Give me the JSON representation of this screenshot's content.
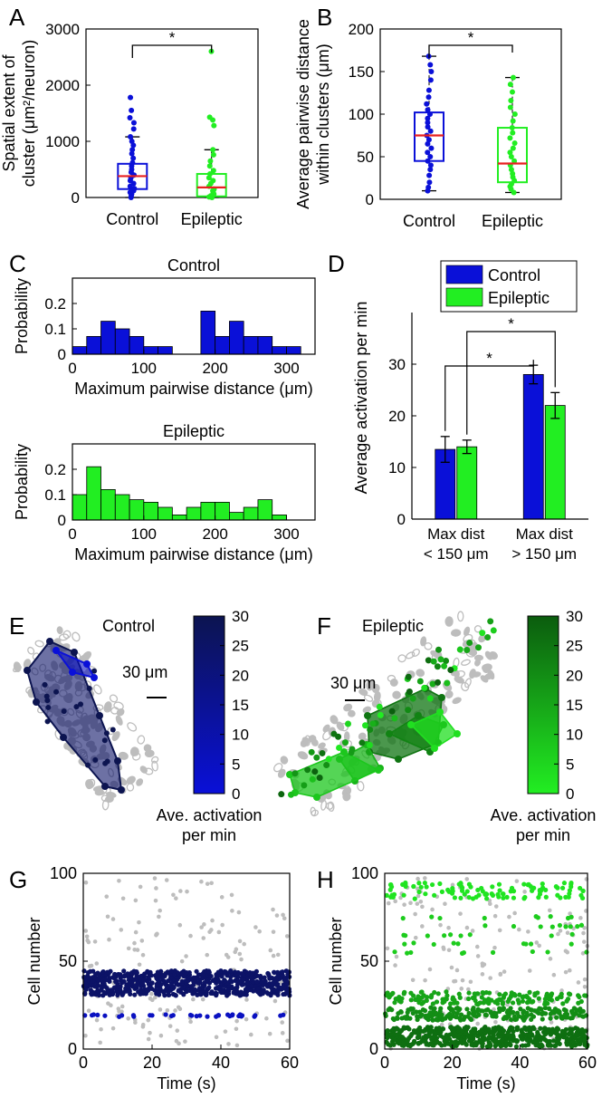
{
  "panel_letters": {
    "A": "A",
    "B": "B",
    "C": "C",
    "D": "D",
    "E": "E",
    "F": "F",
    "G": "G",
    "H": "H"
  },
  "colors": {
    "control": "#0a10d8",
    "epileptic": "#22ee22",
    "median": "#e82020",
    "gray": "#bdbdbd",
    "control_dark": "#0c1450",
    "epileptic_dark": "#0b5c0e"
  },
  "chart_data": [
    {
      "panel": "A",
      "type": "box",
      "ylabel_lines": [
        "Spatial extent of",
        "cluster (μm²/neuron)"
      ],
      "categories": [
        "Control",
        "Epileptic"
      ],
      "ylim": [
        0,
        3000
      ],
      "yticks": [
        0,
        1000,
        2000,
        3000
      ],
      "significance": "*",
      "boxes": [
        {
          "name": "Control",
          "q1": 150,
          "median": 380,
          "q3": 600,
          "whisker_low": 0,
          "whisker_high": 1080,
          "points": [
            0,
            30,
            60,
            90,
            120,
            160,
            200,
            250,
            300,
            350,
            400,
            450,
            500,
            560,
            620,
            700,
            780,
            850,
            930,
            1000,
            1080,
            1220,
            1330,
            1420,
            1550,
            1780
          ]
        },
        {
          "name": "Epileptic",
          "q1": 20,
          "median": 180,
          "q3": 420,
          "whisker_low": 0,
          "whisker_high": 850,
          "points": [
            0,
            10,
            30,
            60,
            90,
            120,
            150,
            200,
            250,
            300,
            350,
            420,
            480,
            560,
            650,
            760,
            850,
            1280,
            1380,
            1430,
            2600
          ]
        }
      ]
    },
    {
      "panel": "B",
      "type": "box",
      "ylabel_lines": [
        "Average pairwise distance",
        "within clusters (μm)"
      ],
      "categories": [
        "Control",
        "Epileptic"
      ],
      "ylim": [
        0,
        200
      ],
      "yticks": [
        0,
        50,
        100,
        150,
        200
      ],
      "significance": "*",
      "boxes": [
        {
          "name": "Control",
          "q1": 45,
          "median": 75,
          "q3": 102,
          "whisker_low": 10,
          "whisker_high": 168,
          "points": [
            10,
            14,
            20,
            28,
            35,
            40,
            45,
            50,
            55,
            60,
            65,
            70,
            75,
            80,
            85,
            90,
            95,
            100,
            105,
            112,
            120,
            128,
            140,
            150,
            158,
            168
          ]
        },
        {
          "name": "Epileptic",
          "q1": 20,
          "median": 42,
          "q3": 84,
          "whisker_low": 8,
          "whisker_high": 143,
          "points": [
            8,
            12,
            15,
            18,
            22,
            26,
            30,
            35,
            40,
            45,
            50,
            55,
            60,
            66,
            72,
            78,
            84,
            92,
            100,
            108,
            116,
            126,
            135,
            143
          ]
        }
      ]
    },
    {
      "panel": "C-control",
      "type": "bar",
      "title": "Control",
      "xlabel": "Maximum pairwise distance (μm)",
      "ylabel": "Probability",
      "xlim": [
        0,
        340
      ],
      "ylim": [
        0,
        0.3
      ],
      "xticks": [
        0,
        100,
        200,
        300
      ],
      "yticks": [
        0,
        0.1,
        0.2
      ],
      "ytick_labels": [
        "0",
        "0.1",
        "0.2"
      ],
      "bin_width": 20,
      "x": [
        10,
        30,
        50,
        70,
        90,
        110,
        130,
        150,
        170,
        190,
        210,
        230,
        250,
        270,
        290,
        310
      ],
      "values": [
        0.03,
        0.07,
        0.13,
        0.1,
        0.07,
        0.03,
        0.03,
        0,
        0,
        0.17,
        0.07,
        0.13,
        0.07,
        0.07,
        0.03,
        0.03
      ]
    },
    {
      "panel": "C-epileptic",
      "type": "bar",
      "title": "Epileptic",
      "xlabel": "Maximum pairwise distance (μm)",
      "ylabel": "Probability",
      "xlim": [
        0,
        340
      ],
      "ylim": [
        0,
        0.3
      ],
      "xticks": [
        0,
        100,
        200,
        300
      ],
      "yticks": [
        0,
        0.1,
        0.2
      ],
      "ytick_labels": [
        "0",
        "0.1",
        "0.2"
      ],
      "bin_width": 20,
      "x": [
        10,
        30,
        50,
        70,
        90,
        110,
        130,
        150,
        170,
        190,
        210,
        230,
        250,
        270,
        290,
        310
      ],
      "values": [
        0.1,
        0.21,
        0.12,
        0.1,
        0.08,
        0.07,
        0.05,
        0.02,
        0.05,
        0.07,
        0.07,
        0.03,
        0.05,
        0.08,
        0.02,
        0
      ]
    },
    {
      "panel": "D",
      "type": "bar",
      "ylabel": "Average activation per min",
      "categories": [
        [
          "Max dist",
          "< 150 μm"
        ],
        [
          "Max dist",
          "> 150 μm"
        ]
      ],
      "ylim": [
        0,
        40
      ],
      "yticks": [
        0,
        10,
        20,
        30
      ],
      "legend": "top-center",
      "significance": [
        "*",
        "*"
      ],
      "series": [
        {
          "name": "Control",
          "values": [
            13.5,
            28
          ],
          "errors": [
            2.5,
            1.8
          ]
        },
        {
          "name": "Epileptic",
          "values": [
            14,
            22
          ],
          "errors": [
            1.3,
            2.5
          ]
        }
      ]
    },
    {
      "panel": "E",
      "type": "map",
      "title": "Control",
      "scale_bar": "30 μm",
      "colorbar_label_lines": [
        "Ave. activation",
        "per min"
      ],
      "colorbar_range": [
        0,
        30
      ],
      "colorbar_ticks": [
        0,
        5,
        10,
        15,
        20,
        25,
        30
      ],
      "clusters": [
        {
          "activation": 25
        },
        {
          "activation": 5
        }
      ]
    },
    {
      "panel": "F",
      "type": "map",
      "title": "Epileptic",
      "scale_bar": "30 μm",
      "colorbar_label_lines": [
        "Ave. activation",
        "per min"
      ],
      "colorbar_range": [
        0,
        30
      ],
      "colorbar_ticks": [
        0,
        5,
        10,
        15,
        20,
        25,
        30
      ],
      "clusters": [
        {
          "activation": 25
        },
        {
          "activation": 22
        },
        {
          "activation": 12
        },
        {
          "activation": 8
        },
        {
          "activation": 3
        }
      ]
    },
    {
      "panel": "G",
      "type": "scatter",
      "xlabel": "Time (s)",
      "ylabel": "Cell number",
      "xlim": [
        0,
        60
      ],
      "ylim": [
        0,
        100
      ],
      "xticks": [
        0,
        20,
        40,
        60
      ],
      "yticks": [
        0,
        50,
        100
      ],
      "bands": [
        {
          "rows": [
            31,
            32,
            33,
            34,
            35,
            36,
            37,
            38,
            39,
            40,
            41,
            42,
            43,
            44
          ],
          "density": 0.85,
          "activation": 25
        },
        {
          "rows": [
            19
          ],
          "density": 0.6,
          "activation": 5
        }
      ]
    },
    {
      "panel": "H",
      "type": "scatter",
      "xlabel": "Time (s)",
      "ylabel": "Cell number",
      "xlim": [
        0,
        60
      ],
      "ylim": [
        0,
        100
      ],
      "xticks": [
        0,
        20,
        40,
        60
      ],
      "yticks": [
        0,
        50,
        100
      ],
      "bands": [
        {
          "rows": [
            2,
            3,
            4,
            5,
            6,
            7,
            8,
            9,
            10,
            11,
            12
          ],
          "density": 0.8,
          "activation": 26
        },
        {
          "rows": [
            17,
            18,
            19,
            20,
            21,
            22,
            23
          ],
          "density": 0.5,
          "activation": 20
        },
        {
          "rows": [
            26,
            27,
            28,
            29,
            30,
            31,
            32
          ],
          "density": 0.35,
          "activation": 15
        },
        {
          "rows": [
            55,
            60,
            65,
            70,
            75
          ],
          "density": 0.15,
          "activation": 7
        },
        {
          "rows": [
            86,
            88,
            90,
            92,
            94
          ],
          "density": 0.35,
          "activation": 2
        }
      ]
    }
  ]
}
